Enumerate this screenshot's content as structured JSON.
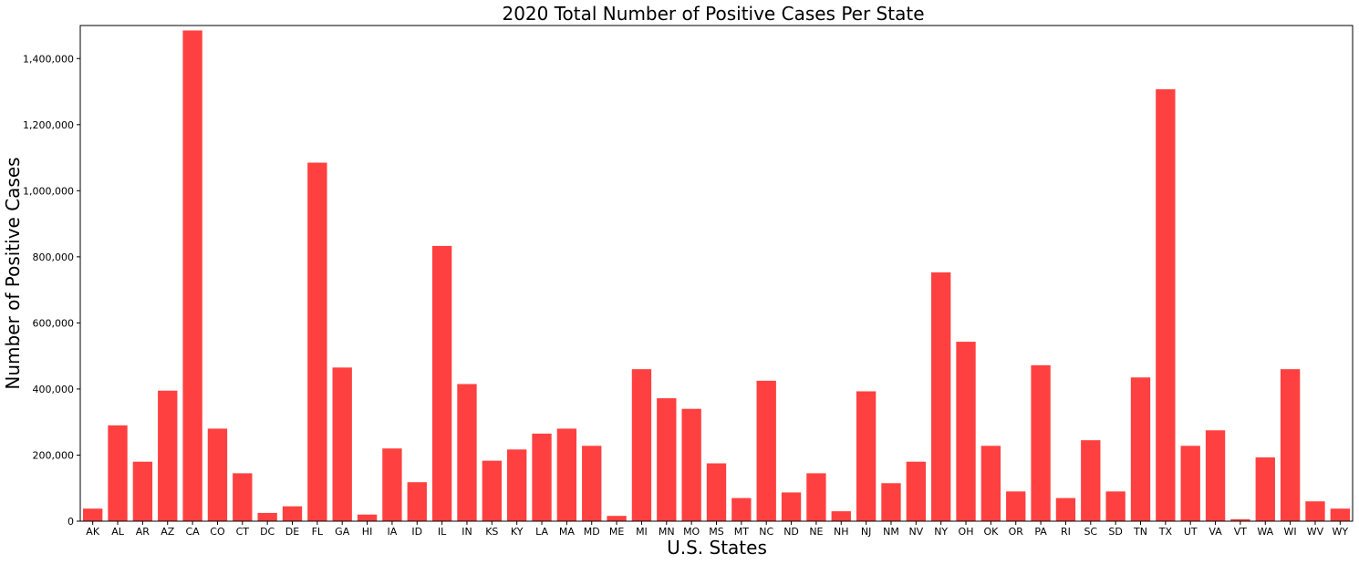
{
  "chart_data": {
    "type": "bar",
    "title": "2020 Total Number of Positive Cases Per State",
    "xlabel": "U.S. States",
    "ylabel": "Number of Positive Cases",
    "ylim": [
      0,
      1500000
    ],
    "yticks": [
      0,
      200000,
      400000,
      600000,
      800000,
      1000000,
      1200000,
      1400000
    ],
    "ytick_labels": [
      "0",
      "200,000",
      "400,000",
      "600,000",
      "800,000",
      "1,000,000",
      "1,200,000",
      "1,400,000"
    ],
    "grid": false,
    "legend": "none",
    "bar_color": "#ff4040",
    "categories": [
      "AK",
      "AL",
      "AR",
      "AZ",
      "CA",
      "CO",
      "CT",
      "DC",
      "DE",
      "FL",
      "GA",
      "HI",
      "IA",
      "ID",
      "IL",
      "IN",
      "KS",
      "KY",
      "LA",
      "MA",
      "MD",
      "ME",
      "MI",
      "MN",
      "MO",
      "MS",
      "MT",
      "NC",
      "ND",
      "NE",
      "NH",
      "NJ",
      "NM",
      "NV",
      "NY",
      "OH",
      "OK",
      "OR",
      "PA",
      "RI",
      "SC",
      "SD",
      "TN",
      "TX",
      "UT",
      "VA",
      "VT",
      "WA",
      "WI",
      "WV",
      "WY"
    ],
    "values": [
      38000,
      290000,
      180000,
      395000,
      1485000,
      280000,
      145000,
      25000,
      45000,
      1085000,
      465000,
      20000,
      220000,
      118000,
      833000,
      415000,
      183000,
      217000,
      265000,
      280000,
      228000,
      16000,
      460000,
      372000,
      340000,
      175000,
      70000,
      425000,
      87000,
      145000,
      30000,
      393000,
      115000,
      180000,
      753000,
      543000,
      228000,
      90000,
      472000,
      70000,
      245000,
      90000,
      435000,
      1307000,
      228000,
      275000,
      6000,
      193000,
      460000,
      60000,
      38000
    ]
  }
}
